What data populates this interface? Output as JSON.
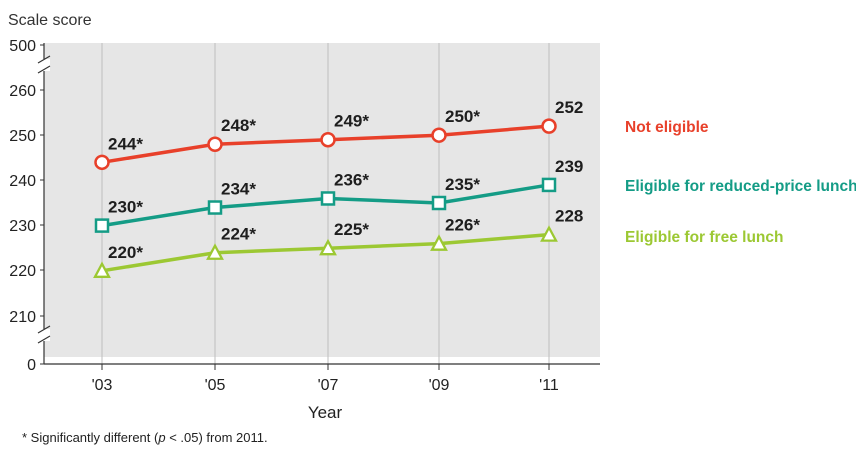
{
  "chart_data": {
    "type": "line",
    "ylabel": "Scale score",
    "xlabel": "Year",
    "categories": [
      "'03",
      "'05",
      "'07",
      "'09",
      "'11"
    ],
    "yticks": [
      "0",
      "210",
      "220",
      "230",
      "240",
      "250",
      "260",
      "500"
    ],
    "ylim": [
      210,
      260
    ],
    "axis_break": true,
    "grid": "vertical",
    "legend_placement": "right",
    "series": [
      {
        "name": "Not eligible",
        "color": "#e8402a",
        "marker": "circle",
        "values": [
          244,
          248,
          249,
          250,
          252
        ],
        "labels": [
          "244*",
          "248*",
          "249*",
          "250*",
          "252"
        ]
      },
      {
        "name": "Eligible for reduced-price lunch",
        "color": "#149c86",
        "marker": "square",
        "values": [
          230,
          234,
          236,
          235,
          239
        ],
        "labels": [
          "230*",
          "234*",
          "236*",
          "235*",
          "239"
        ]
      },
      {
        "name": "Eligible for free lunch",
        "color": "#9cc833",
        "marker": "triangle",
        "values": [
          220,
          224,
          225,
          226,
          228
        ],
        "labels": [
          "220*",
          "224*",
          "225*",
          "226*",
          "228"
        ]
      }
    ],
    "footnote": {
      "prefix": "* Significantly different (",
      "p": "p",
      "suffix": " < .05) from 2011."
    }
  }
}
